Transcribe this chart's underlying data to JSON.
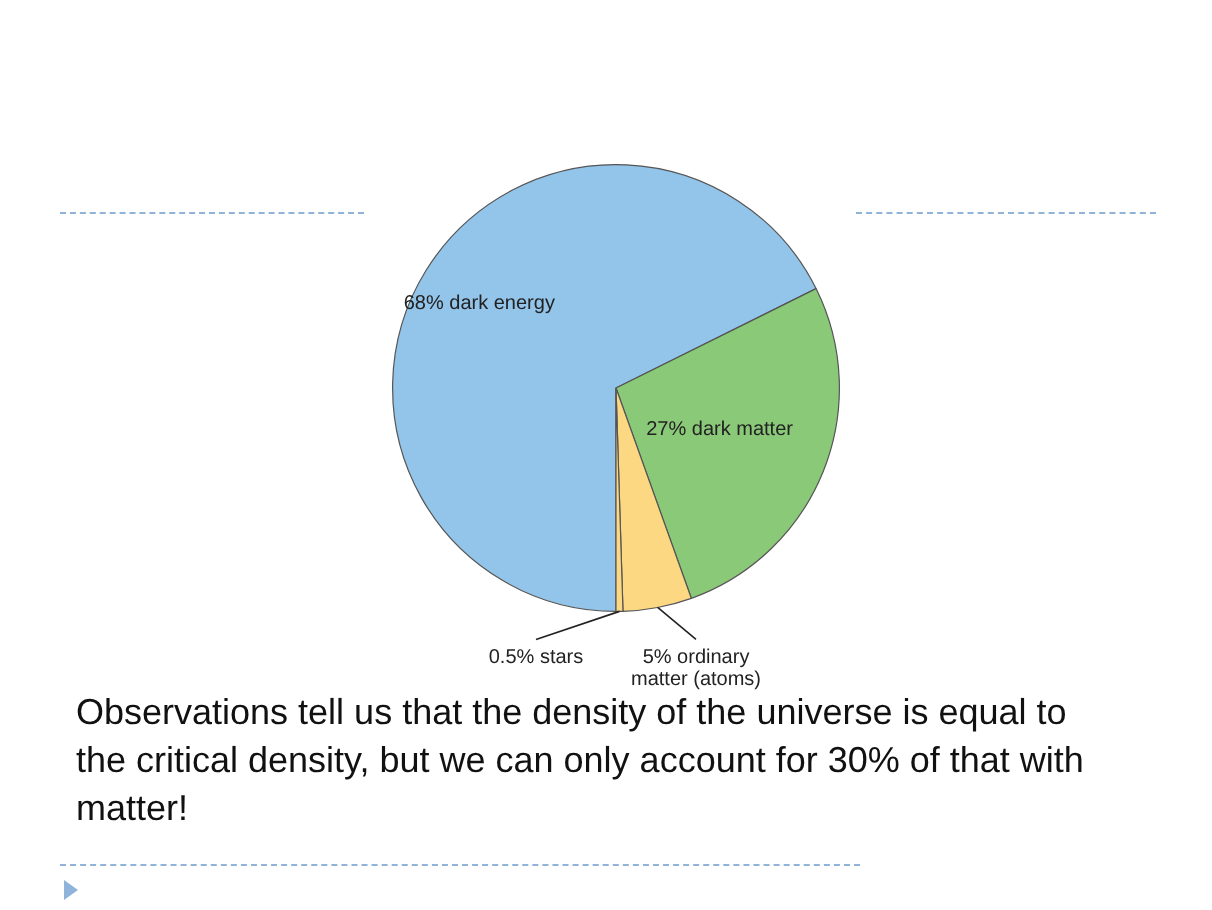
{
  "chart_data": {
    "type": "pie",
    "categories": [
      "68% dark energy",
      "27% dark matter",
      "5% ordinary matter (atoms)",
      "0.5% stars"
    ],
    "values": [
      68,
      27,
      5,
      0.5
    ],
    "colors": [
      "#93c4ea",
      "#8ac978",
      "#fcd883",
      "#fcd883"
    ],
    "annotations": [
      "Observations tell us that the density of the universe is equal to the critical density, but we can only account for 30% of that with matter!"
    ]
  }
}
